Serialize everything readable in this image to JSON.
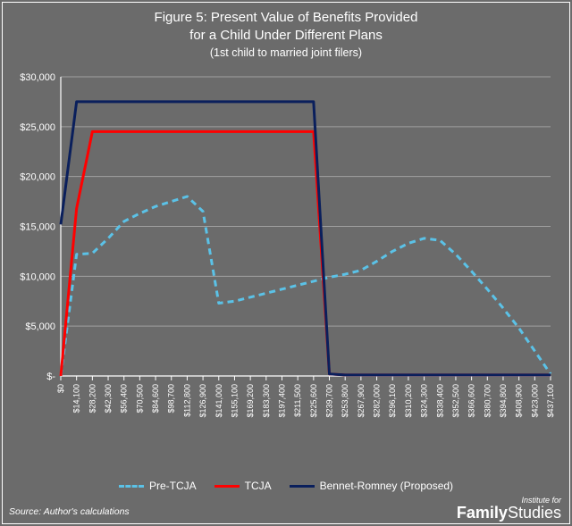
{
  "title": {
    "line1": "Figure 5: Present Value of Benefits Provided",
    "line2": "for a Child Under Different Plans",
    "sub": "(1st child to married joint filers)",
    "color": "#ffffff",
    "fontsize": 15,
    "sub_fontsize": 12.5
  },
  "chart": {
    "type": "line",
    "background_color": "#6b6b6b",
    "plot_border_color": "#ffffff",
    "grid": {
      "show": true,
      "axis": "y",
      "color": "#a0a0a0",
      "width": 1
    },
    "y": {
      "min": 0,
      "max": 30000,
      "step": 5000,
      "labels": [
        "$-",
        "$5,000",
        "$10,000",
        "$15,000",
        "$20,000",
        "$25,000",
        "$30,000"
      ],
      "tick_color": "#ffffff",
      "label_fontsize": 11
    },
    "x": {
      "categories": [
        "$0",
        "$14,100",
        "$28,200",
        "$42,300",
        "$56,400",
        "$70,500",
        "$84,600",
        "$98,700",
        "$112,800",
        "$126,900",
        "$141,000",
        "$155,100",
        "$169,200",
        "$183,300",
        "$197,400",
        "$211,500",
        "$225,600",
        "$239,700",
        "$253,800",
        "$267,900",
        "$282,000",
        "$296,100",
        "$310,200",
        "$324,300",
        "$338,400",
        "$352,500",
        "$366,600",
        "$380,700",
        "$394,800",
        "$408,900",
        "$423,000",
        "$437,100"
      ],
      "label_fontsize": 9,
      "rotation": -90,
      "tick_color": "#ffffff"
    },
    "series": [
      {
        "name": "Pre-TCJA",
        "color": "#5bc2e7",
        "width": 3,
        "dash": "7,5",
        "values": [
          0,
          12200,
          12300,
          13800,
          15500,
          16300,
          17000,
          17500,
          18000,
          16500,
          7300,
          7500,
          7900,
          8300,
          8700,
          9100,
          9500,
          9900,
          10200,
          10600,
          11500,
          12500,
          13300,
          13800,
          13600,
          12200,
          10500,
          8700,
          6800,
          4800,
          2500,
          200
        ]
      },
      {
        "name": "TCJA",
        "color": "#ff0000",
        "width": 3,
        "dash": null,
        "values": [
          0,
          16800,
          24500,
          24500,
          24500,
          24500,
          24500,
          24500,
          24500,
          24500,
          24500,
          24500,
          24500,
          24500,
          24500,
          24500,
          24500,
          200,
          100,
          100,
          100,
          100,
          100,
          100,
          100,
          100,
          100,
          100,
          100,
          100,
          100,
          100
        ]
      },
      {
        "name": "Bennet-Romney (Proposed)",
        "color": "#0a1f5c",
        "width": 3,
        "dash": null,
        "values": [
          15200,
          27500,
          27500,
          27500,
          27500,
          27500,
          27500,
          27500,
          27500,
          27500,
          27500,
          27500,
          27500,
          27500,
          27500,
          27500,
          27500,
          200,
          100,
          100,
          100,
          100,
          100,
          100,
          100,
          100,
          100,
          100,
          100,
          100,
          100,
          100
        ]
      }
    ]
  },
  "legend": {
    "items": [
      {
        "label": "Pre-TCJA",
        "color": "#5bc2e7",
        "dash": true
      },
      {
        "label": "TCJA",
        "color": "#ff0000",
        "dash": false
      },
      {
        "label": "Bennet-Romney (Proposed)",
        "color": "#0a1f5c",
        "dash": false
      }
    ],
    "fontsize": 12,
    "color": "#ffffff"
  },
  "source": "Source: Author's calculations",
  "brand": {
    "top": "Institute for",
    "bold": "Family",
    "light": "Studies"
  }
}
